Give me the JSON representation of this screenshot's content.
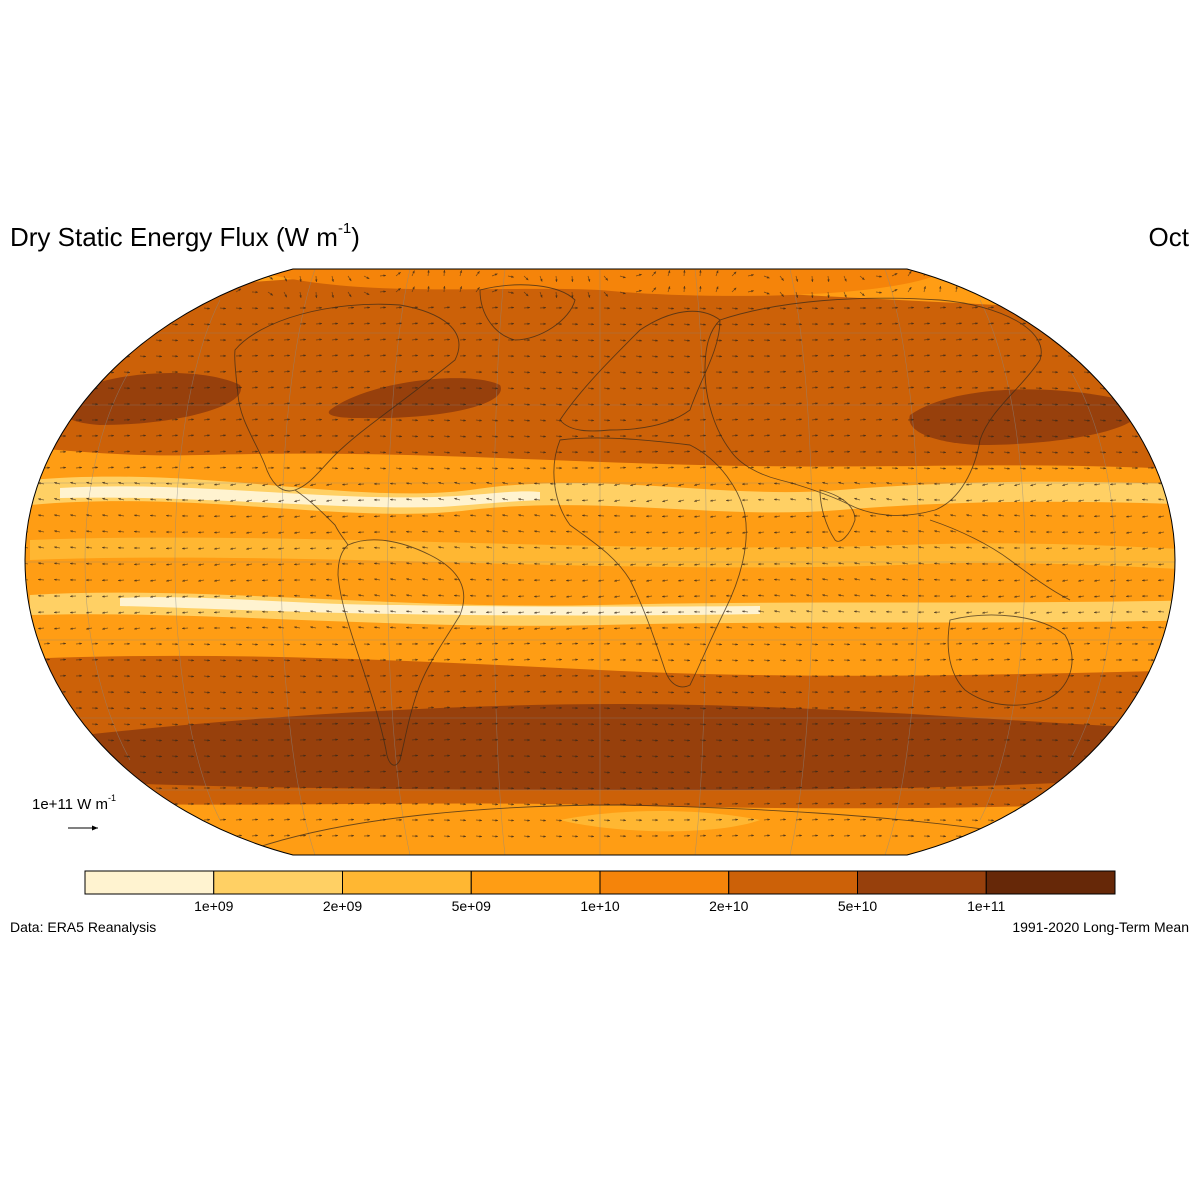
{
  "title": {
    "main": "Dry Static Energy Flux (W m",
    "unit_exponent": "-1",
    "close": ")"
  },
  "month": "Oct",
  "reference_vector": {
    "label": "1e+11 W m",
    "unit_exponent": "-1"
  },
  "colorbar": {
    "colors": [
      "#fff3d0",
      "#ffd064",
      "#ffb732",
      "#ff9d14",
      "#f5840a",
      "#cc6108",
      "#97400c",
      "#662808"
    ],
    "tick_labels": [
      "1e+09",
      "2e+09",
      "5e+09",
      "1e+10",
      "2e+10",
      "5e+10",
      "1e+11"
    ]
  },
  "footer": {
    "source": "Data: ERA5 Reanalysis",
    "period": "1991-2020 Long-Term Mean"
  },
  "map": {
    "projection": "Robinson",
    "field": "Dry static energy flux magnitude with flux vectors",
    "coastlines": true,
    "graticule": true
  }
}
